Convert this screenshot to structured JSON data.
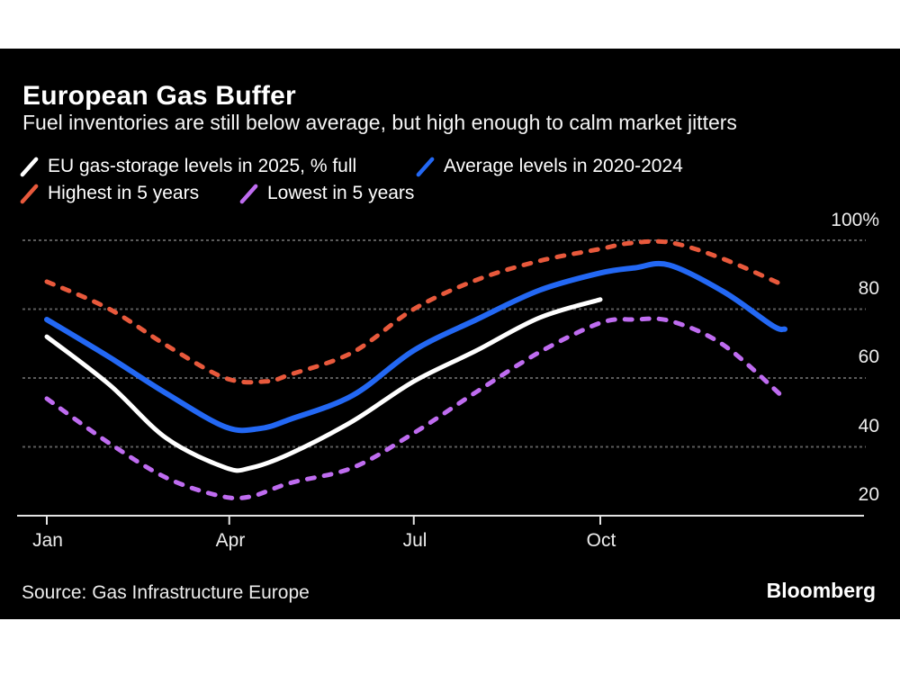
{
  "header": {
    "title": "European Gas Buffer",
    "subtitle": "Fuel inventories are still below average, but high enough to calm market jitters"
  },
  "legend": {
    "items": [
      {
        "label": "EU gas-storage levels in 2025, % full",
        "color": "white"
      },
      {
        "label": "Average levels in 2020-2024",
        "color": "blue"
      },
      {
        "label": "Highest in 5 years",
        "color": "orange"
      },
      {
        "label": "Lowest in 5 years",
        "color": "purple"
      }
    ]
  },
  "colors": {
    "white": "#ffffff",
    "blue": "#2368f4",
    "orange": "#e8593c",
    "purple": "#bf6cf0",
    "grid": "#5b5b5b",
    "axis": "#e3e3e3",
    "label": "#ededed",
    "panel_bg": "#000000"
  },
  "footer": {
    "source": "Source: Gas Infrastructure Europe",
    "brand": "Bloomberg"
  },
  "chart_data": {
    "type": "line",
    "title": "European Gas Buffer",
    "xlabel": "",
    "ylabel": "% full",
    "x_axis": {
      "unit": "day_of_year",
      "tick_days": [
        0,
        90,
        181,
        273
      ],
      "tick_labels": [
        "Jan",
        "Apr",
        "Jul",
        "Oct"
      ]
    },
    "y_axis": {
      "ylim": [
        20,
        100
      ],
      "gridlines": [
        40,
        60,
        80,
        100
      ],
      "tick_labels": [
        "100%",
        "80",
        "60",
        "40",
        "20"
      ],
      "baseline": 20
    },
    "grid": "dotted-horizontal",
    "legend_position": "top-left",
    "series": [
      {
        "key": "highest-5y",
        "name": "Highest in 5 years",
        "color": "orange",
        "style": "dashed",
        "points": [
          [
            0,
            88
          ],
          [
            31,
            80
          ],
          [
            59,
            69.5
          ],
          [
            88,
            60
          ],
          [
            108,
            59
          ],
          [
            120,
            61
          ],
          [
            151,
            67.5
          ],
          [
            181,
            80
          ],
          [
            212,
            88.5
          ],
          [
            243,
            94
          ],
          [
            273,
            97.5
          ],
          [
            288,
            99.2
          ],
          [
            308,
            99.3
          ],
          [
            334,
            94.5
          ],
          [
            364,
            86.8
          ]
        ]
      },
      {
        "key": "lowest-5y",
        "name": "Lowest in 5 years",
        "color": "purple",
        "style": "dashed",
        "points": [
          [
            0,
            54
          ],
          [
            31,
            41
          ],
          [
            59,
            31
          ],
          [
            85,
            25.8
          ],
          [
            100,
            25.5
          ],
          [
            120,
            29.5
          ],
          [
            151,
            34
          ],
          [
            181,
            44
          ],
          [
            212,
            56
          ],
          [
            243,
            67.5
          ],
          [
            273,
            76
          ],
          [
            290,
            77
          ],
          [
            308,
            76.5
          ],
          [
            334,
            69.5
          ],
          [
            364,
            54
          ]
        ]
      },
      {
        "key": "avg-2020-2024",
        "name": "Average levels in 2020-2024",
        "color": "blue",
        "style": "solid",
        "points": [
          [
            0,
            77
          ],
          [
            31,
            66
          ],
          [
            59,
            55.5
          ],
          [
            88,
            45.8
          ],
          [
            105,
            45.3
          ],
          [
            120,
            48
          ],
          [
            151,
            55
          ],
          [
            181,
            68
          ],
          [
            212,
            77
          ],
          [
            243,
            85.5
          ],
          [
            273,
            90.5
          ],
          [
            290,
            92
          ],
          [
            307,
            92.8
          ],
          [
            334,
            85
          ],
          [
            358,
            75.2
          ],
          [
            364,
            74.2
          ]
        ]
      },
      {
        "key": "eu-2025",
        "name": "EU gas-storage levels in 2025, % full",
        "color": "white",
        "style": "solid",
        "points": [
          [
            0,
            72
          ],
          [
            31,
            58
          ],
          [
            59,
            42.5
          ],
          [
            88,
            34
          ],
          [
            100,
            33.8
          ],
          [
            120,
            38
          ],
          [
            151,
            47.5
          ],
          [
            181,
            59
          ],
          [
            212,
            68
          ],
          [
            243,
            77.5
          ],
          [
            273,
            82.8
          ]
        ]
      }
    ]
  }
}
